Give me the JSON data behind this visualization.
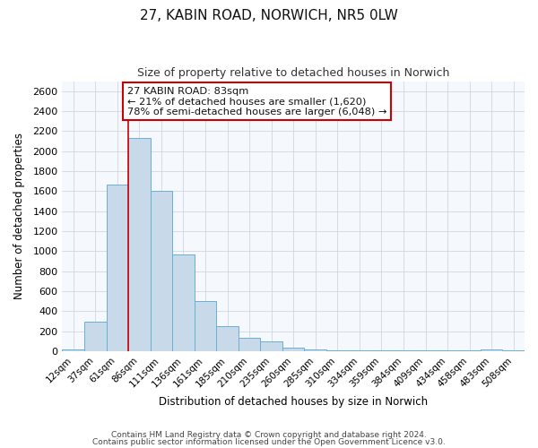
{
  "title": "27, KABIN ROAD, NORWICH, NR5 0LW",
  "subtitle": "Size of property relative to detached houses in Norwich",
  "xlabel": "Distribution of detached houses by size in Norwich",
  "ylabel": "Number of detached properties",
  "bar_color": "#c8d9ea",
  "bar_edge_color": "#6aafd6",
  "background_color": "#ffffff",
  "plot_bg_color": "#f5f8fc",
  "grid_color": "#c8d0da",
  "categories": [
    "12sqm",
    "37sqm",
    "61sqm",
    "86sqm",
    "111sqm",
    "136sqm",
    "161sqm",
    "185sqm",
    "210sqm",
    "235sqm",
    "260sqm",
    "285sqm",
    "310sqm",
    "334sqm",
    "359sqm",
    "384sqm",
    "409sqm",
    "434sqm",
    "458sqm",
    "483sqm",
    "508sqm"
  ],
  "values": [
    20,
    295,
    1670,
    2130,
    1600,
    970,
    500,
    250,
    130,
    100,
    35,
    15,
    10,
    5,
    5,
    5,
    5,
    5,
    5,
    20,
    5
  ],
  "ylim": [
    0,
    2700
  ],
  "yticks": [
    0,
    200,
    400,
    600,
    800,
    1000,
    1200,
    1400,
    1600,
    1800,
    2000,
    2200,
    2400,
    2600
  ],
  "marker_bar_index": 3,
  "marker_color": "#cc0000",
  "annotation_title": "27 KABIN ROAD: 83sqm",
  "annotation_line1": "← 21% of detached houses are smaller (1,620)",
  "annotation_line2": "78% of semi-detached houses are larger (6,048) →",
  "annotation_box_color": "#ffffff",
  "annotation_box_edge": "#cc0000",
  "footer1": "Contains HM Land Registry data © Crown copyright and database right 2024.",
  "footer2": "Contains public sector information licensed under the Open Government Licence v3.0."
}
